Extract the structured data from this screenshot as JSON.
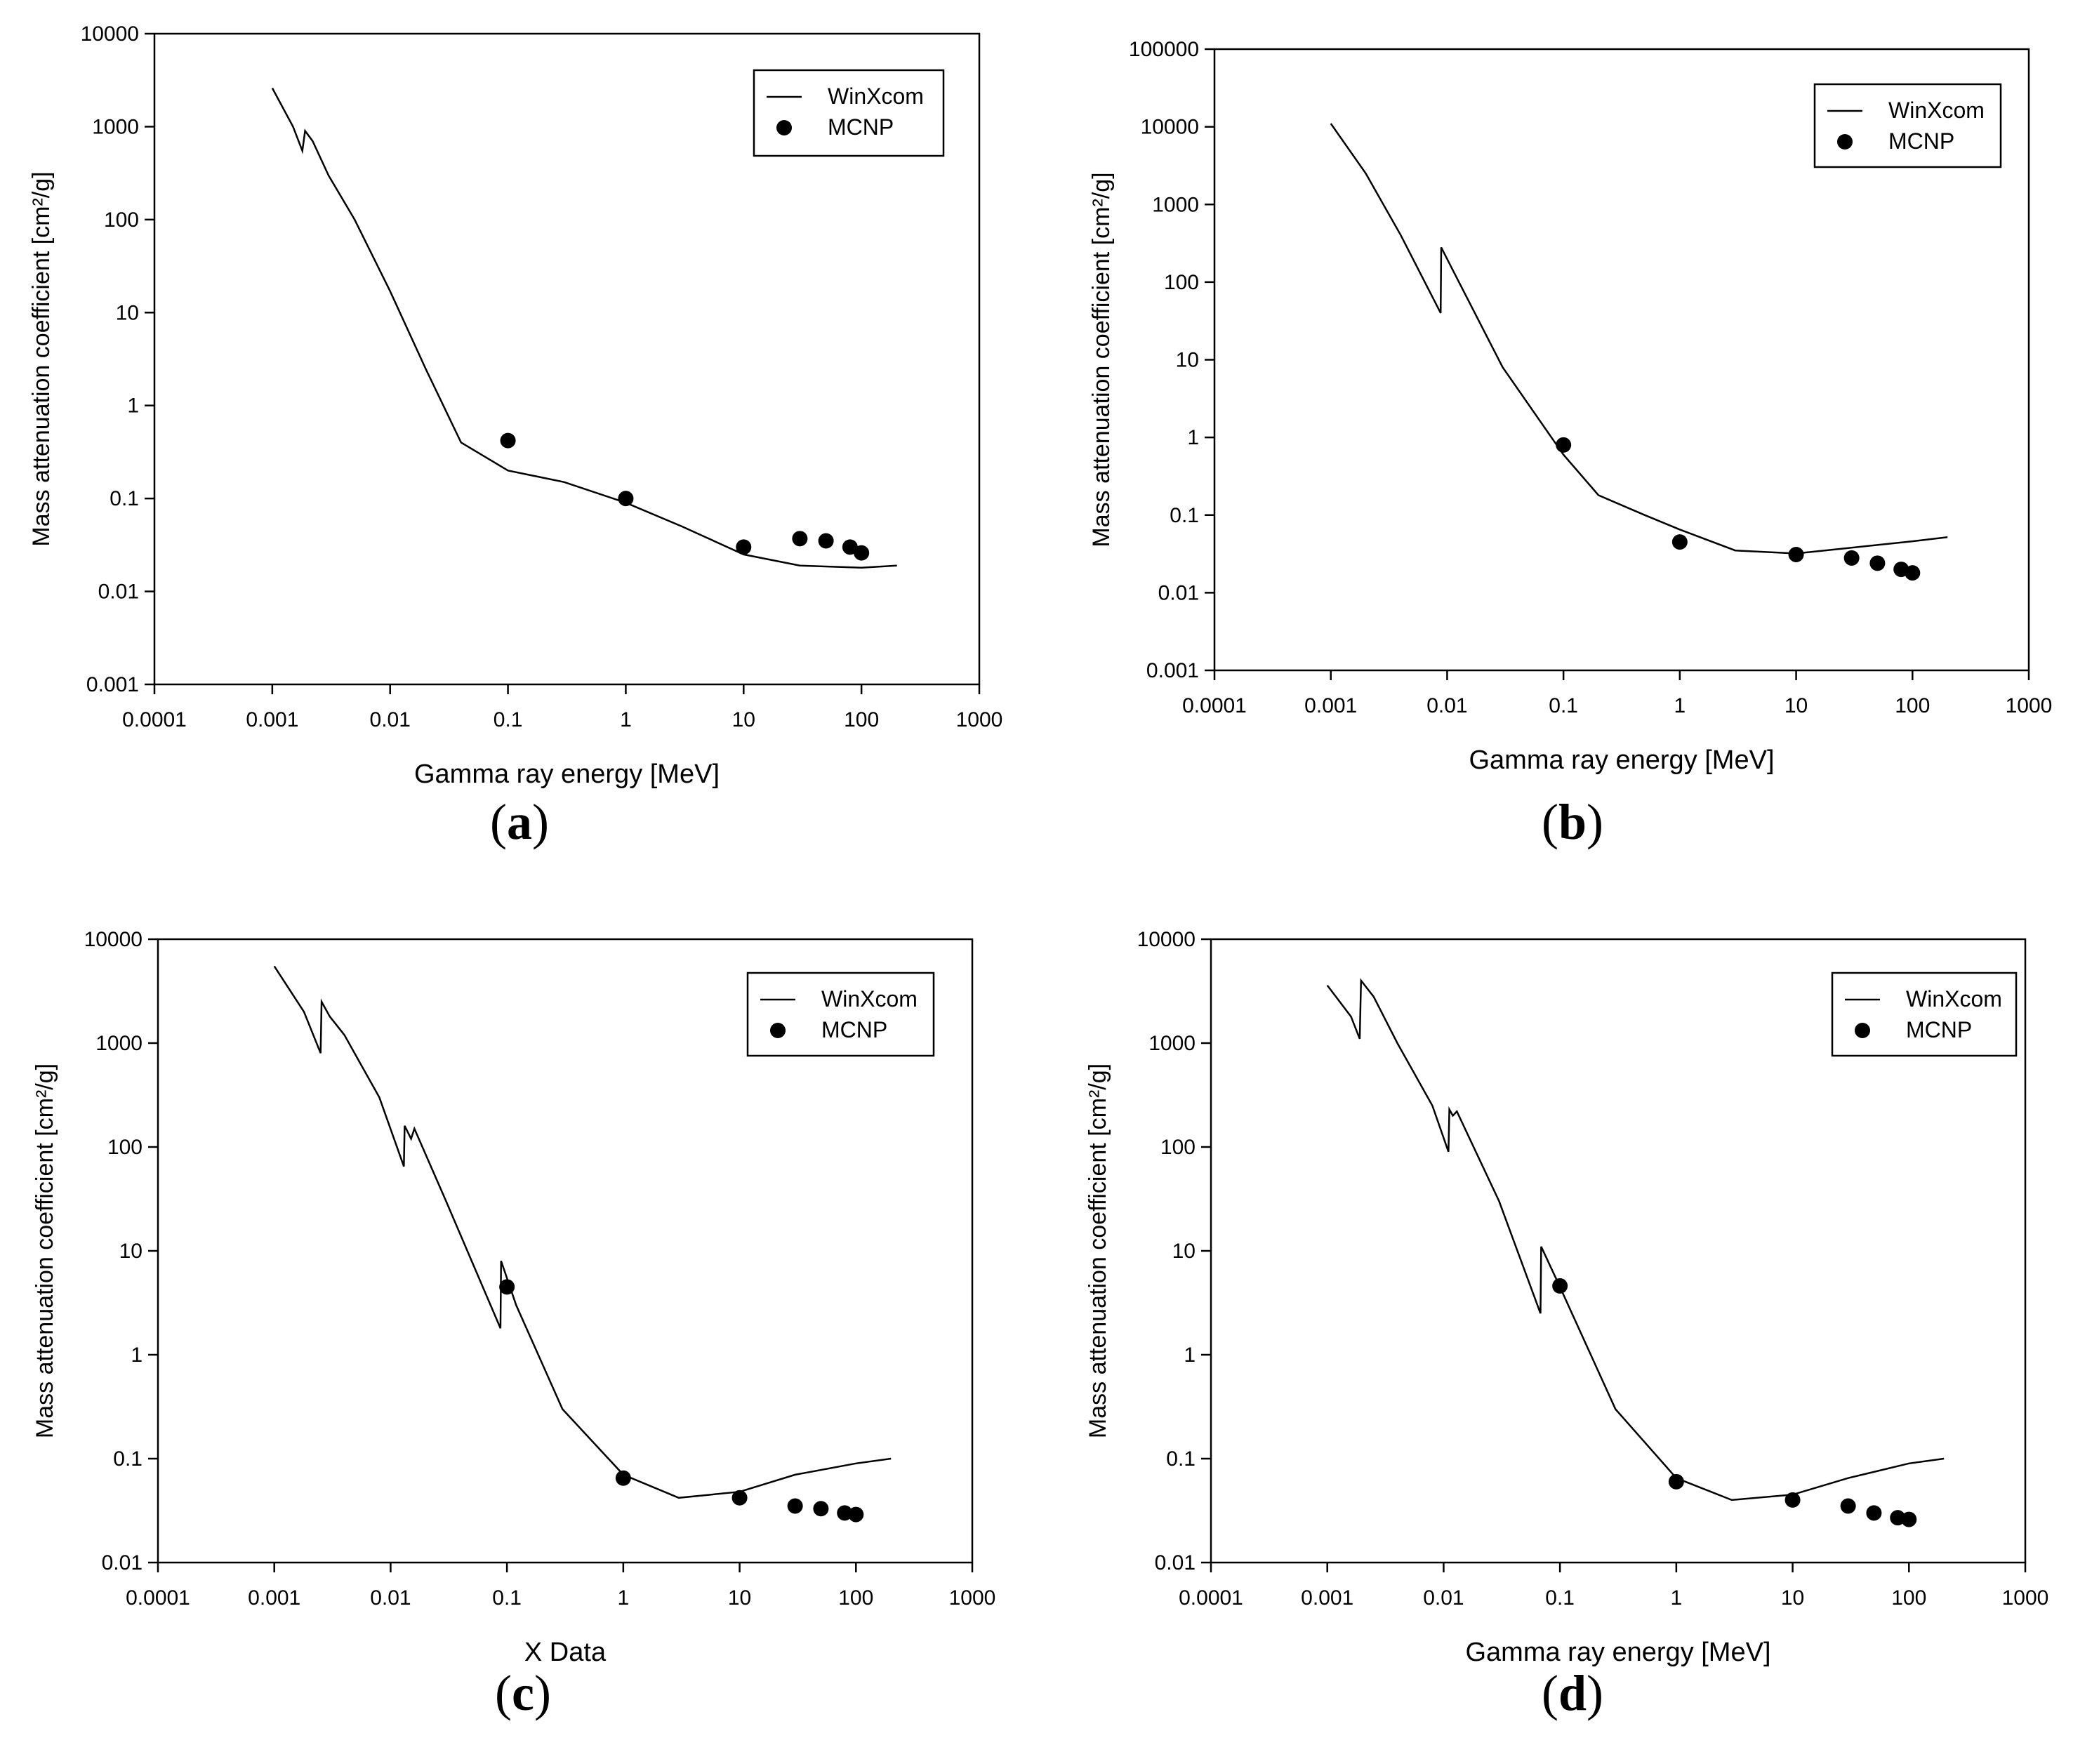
{
  "chart_data": [
    {
      "panel": "a",
      "type": "line",
      "xscale": "log",
      "yscale": "log",
      "xlim": [
        0.0001,
        1000
      ],
      "ylim": [
        0.001,
        10000
      ],
      "xlabel": "Gamma ray energy [MeV]",
      "ylabel": "Mass attenuation coefficient [cm²/g]",
      "xticks": [
        0.0001,
        0.001,
        0.01,
        0.1,
        1,
        10,
        100,
        1000
      ],
      "xtick_labels": [
        "0.0001",
        "0.001",
        "0.01",
        "0.1",
        "1",
        "10",
        "100",
        "1000"
      ],
      "yticks": [
        0.001,
        0.01,
        0.1,
        1,
        10,
        100,
        1000,
        10000
      ],
      "ytick_labels": [
        "0.001",
        "0.01",
        "0.1",
        "1",
        "10",
        "100",
        "1000",
        "10000"
      ],
      "legend": [
        "WinXcom",
        "MCNP"
      ],
      "caption": "a",
      "series": [
        {
          "name": "WinXcom",
          "style": "line",
          "x": [
            0.001,
            0.0015,
            0.0018,
            0.0019,
            0.0022,
            0.003,
            0.005,
            0.01,
            0.02,
            0.04,
            0.1,
            0.3,
            1,
            3,
            10,
            30,
            100,
            200
          ],
          "y": [
            2600,
            1000,
            550,
            900,
            700,
            300,
            100,
            17,
            2.5,
            0.4,
            0.2,
            0.15,
            0.09,
            0.05,
            0.025,
            0.019,
            0.018,
            0.019
          ]
        },
        {
          "name": "MCNP",
          "style": "marker",
          "x": [
            0.1,
            1,
            10,
            30,
            50,
            80,
            100
          ],
          "y": [
            0.42,
            0.1,
            0.03,
            0.037,
            0.035,
            0.03,
            0.026
          ]
        }
      ]
    },
    {
      "panel": "b",
      "type": "line",
      "xscale": "log",
      "yscale": "log",
      "xlim": [
        0.0001,
        1000
      ],
      "ylim": [
        0.001,
        100000
      ],
      "xlabel": "Gamma ray energy [MeV]",
      "ylabel": "Mass attenuation coefficient [cm²/g]",
      "xticks": [
        0.0001,
        0.001,
        0.01,
        0.1,
        1,
        10,
        100,
        1000
      ],
      "xtick_labels": [
        "0.0001",
        "0.001",
        "0.01",
        "0.1",
        "1",
        "10",
        "100",
        "1000"
      ],
      "yticks": [
        0.001,
        0.01,
        0.1,
        1,
        10,
        100,
        1000,
        10000,
        100000
      ],
      "ytick_labels": [
        "0.001",
        "0.01",
        "0.1",
        "1",
        "10",
        "100",
        "1000",
        "10000",
        "100000"
      ],
      "legend": [
        "WinXcom",
        "MCNP"
      ],
      "caption": "b",
      "series": [
        {
          "name": "WinXcom",
          "style": "line",
          "x": [
            0.001,
            0.002,
            0.004,
            0.0088,
            0.0089,
            0.011,
            0.03,
            0.1,
            0.2,
            0.5,
            1,
            3,
            10,
            30,
            100,
            200
          ],
          "y": [
            11000,
            2500,
            400,
            40,
            280,
            150,
            8,
            0.6,
            0.18,
            0.1,
            0.065,
            0.035,
            0.032,
            0.038,
            0.046,
            0.052
          ]
        },
        {
          "name": "MCNP",
          "style": "marker",
          "x": [
            0.1,
            1,
            10,
            30,
            50,
            80,
            100
          ],
          "y": [
            0.8,
            0.045,
            0.031,
            0.028,
            0.024,
            0.02,
            0.018
          ]
        }
      ]
    },
    {
      "panel": "c",
      "type": "line",
      "xscale": "log",
      "yscale": "log",
      "xlim": [
        0.0001,
        1000
      ],
      "ylim": [
        0.01,
        10000
      ],
      "xlabel": "X Data",
      "ylabel": "Mass attenuation coefficient [cm²/g]",
      "xticks": [
        0.0001,
        0.001,
        0.01,
        0.1,
        1,
        10,
        100,
        1000
      ],
      "xtick_labels": [
        "0.0001",
        "0.001",
        "0.01",
        "0.1",
        "1",
        "10",
        "100",
        "1000"
      ],
      "yticks": [
        0.01,
        0.1,
        1,
        10,
        100,
        1000,
        10000
      ],
      "ytick_labels": [
        "0.01",
        "0.1",
        "1",
        "10",
        "100",
        "1000",
        "10000"
      ],
      "legend": [
        "WinXcom",
        "MCNP"
      ],
      "caption": "c",
      "series": [
        {
          "name": "WinXcom",
          "style": "line",
          "x": [
            0.001,
            0.0018,
            0.0025,
            0.00255,
            0.003,
            0.004,
            0.008,
            0.013,
            0.0132,
            0.015,
            0.016,
            0.03,
            0.088,
            0.089,
            0.12,
            0.3,
            1,
            3,
            10,
            30,
            100,
            200
          ],
          "y": [
            5500,
            2000,
            800,
            2500,
            1800,
            1200,
            300,
            65,
            160,
            120,
            150,
            30,
            1.8,
            8,
            3,
            0.3,
            0.07,
            0.042,
            0.048,
            0.07,
            0.09,
            0.1
          ]
        },
        {
          "name": "MCNP",
          "style": "marker",
          "x": [
            0.1,
            1,
            10,
            30,
            50,
            80,
            100
          ],
          "y": [
            4.5,
            0.065,
            0.042,
            0.035,
            0.033,
            0.03,
            0.029
          ]
        }
      ]
    },
    {
      "panel": "d",
      "type": "line",
      "xscale": "log",
      "yscale": "log",
      "xlim": [
        0.0001,
        1000
      ],
      "ylim": [
        0.01,
        10000
      ],
      "xlabel": "Gamma ray energy [MeV]",
      "ylabel": "Mass attenuation coefficient [cm²/g]",
      "xticks": [
        0.0001,
        0.001,
        0.01,
        0.1,
        1,
        10,
        100,
        1000
      ],
      "xtick_labels": [
        "0.0001",
        "0.001",
        "0.01",
        "0.1",
        "1",
        "10",
        "100",
        "1000"
      ],
      "yticks": [
        0.01,
        0.1,
        1,
        10,
        100,
        1000,
        10000
      ],
      "ytick_labels": [
        "0.01",
        "0.1",
        "1",
        "10",
        "100",
        "1000",
        "10000"
      ],
      "legend": [
        "WinXcom",
        "MCNP"
      ],
      "caption": "d",
      "series": [
        {
          "name": "WinXcom",
          "style": "line",
          "x": [
            0.001,
            0.0016,
            0.0019,
            0.00195,
            0.0025,
            0.004,
            0.008,
            0.011,
            0.0112,
            0.012,
            0.013,
            0.03,
            0.068,
            0.069,
            0.1,
            0.3,
            1,
            3,
            10,
            30,
            100,
            200
          ],
          "y": [
            3600,
            1800,
            1100,
            4000,
            2800,
            1000,
            250,
            90,
            230,
            200,
            220,
            30,
            2.5,
            11,
            4.5,
            0.3,
            0.065,
            0.04,
            0.045,
            0.065,
            0.09,
            0.1
          ]
        },
        {
          "name": "MCNP",
          "style": "marker",
          "x": [
            0.1,
            1,
            10,
            30,
            50,
            80,
            100
          ],
          "y": [
            4.6,
            0.06,
            0.04,
            0.035,
            0.03,
            0.027,
            0.026
          ]
        }
      ]
    }
  ]
}
